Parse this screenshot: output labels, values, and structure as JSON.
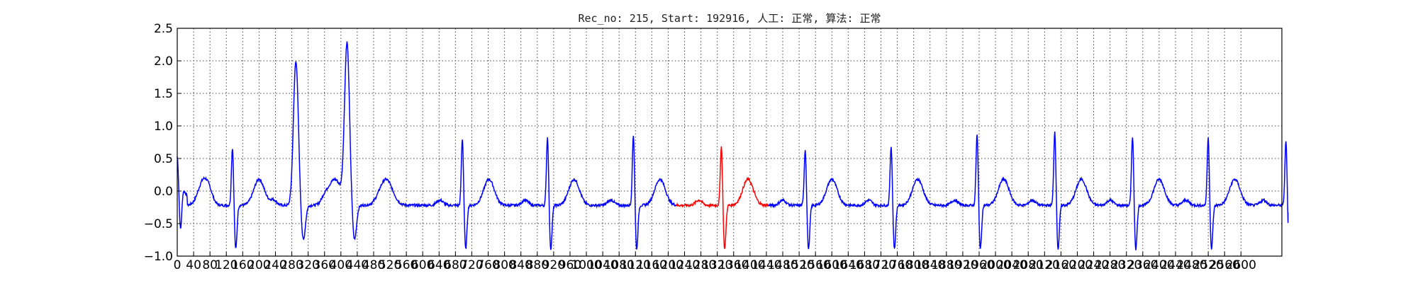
{
  "chart_data": {
    "type": "line",
    "title": "Rec_no: 215, Start: 192916, 人工: 正常, 算法: 正常",
    "xlabel": "",
    "ylabel": "",
    "xlim": [
      0,
      2700
    ],
    "ylim": [
      -1.0,
      2.5
    ],
    "grid": true,
    "yticks": [
      -1.0,
      -0.5,
      0.0,
      0.5,
      1.0,
      1.5,
      2.0,
      2.5
    ],
    "ytick_labels": [
      "−1.0",
      "−0.5",
      "0.0",
      "0.5",
      "1.0",
      "1.5",
      "2.0",
      "2.5"
    ],
    "xticks": [
      0,
      40,
      80,
      120,
      160,
      200,
      240,
      280,
      320,
      360,
      400,
      440,
      480,
      520,
      560,
      600,
      640,
      680,
      720,
      760,
      800,
      840,
      880,
      920,
      960,
      1000,
      1040,
      1080,
      1120,
      1160,
      1200,
      1240,
      1280,
      1320,
      1360,
      1400,
      1440,
      1480,
      1520,
      1560,
      1600,
      1640,
      1680,
      1720,
      1760,
      1800,
      1840,
      1880,
      1920,
      1960,
      2000,
      2040,
      2080,
      2120,
      2160,
      2200,
      2240,
      2280,
      2320,
      2360,
      2400,
      2440,
      2480,
      2520,
      2560,
      2600
    ],
    "series_colors": {
      "default": "#0000ff",
      "highlight": "#ff0000"
    },
    "highlight_range": [
      1220,
      1445
    ],
    "beats": [
      {
        "x": 0,
        "peak": 0.2
      },
      {
        "x": 135,
        "peak": 0.68
      },
      {
        "x": 290,
        "peak": 2.0
      },
      {
        "x": 415,
        "peak": 2.22
      },
      {
        "x": 697,
        "peak": 0.82
      },
      {
        "x": 905,
        "peak": 0.84
      },
      {
        "x": 1115,
        "peak": 0.88
      },
      {
        "x": 1330,
        "peak": 0.7
      },
      {
        "x": 1535,
        "peak": 0.65
      },
      {
        "x": 1745,
        "peak": 0.7
      },
      {
        "x": 1955,
        "peak": 0.88
      },
      {
        "x": 2145,
        "peak": 0.93
      },
      {
        "x": 2335,
        "peak": 0.86
      },
      {
        "x": 2520,
        "peak": 0.83
      },
      {
        "x": 2710,
        "peak": 0.78
      }
    ],
    "baseline": -0.22
  }
}
